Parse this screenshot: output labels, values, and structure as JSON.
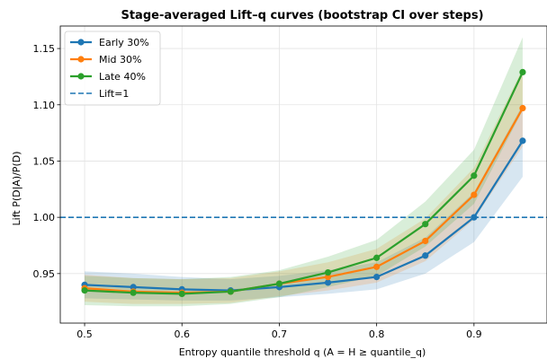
{
  "chart_data": {
    "type": "line",
    "title": "Stage-averaged Lift–q curves (bootstrap CI over steps)",
    "xlabel": "Entropy quantile threshold q  (A = H ≥ quantile_q)",
    "ylabel": "Lift  P(D|A)/P(D)",
    "xlim": [
      0.475,
      0.975
    ],
    "ylim": [
      0.906,
      1.17
    ],
    "xticks": [
      0.5,
      0.6,
      0.7,
      0.8,
      0.9
    ],
    "xtick_labels": [
      "0.5",
      "0.6",
      "0.7",
      "0.8",
      "0.9"
    ],
    "yticks": [
      0.95,
      1.0,
      1.05,
      1.1,
      1.15
    ],
    "ytick_labels": [
      "0.95",
      "1.00",
      "1.05",
      "1.10",
      "1.15"
    ],
    "grid": true,
    "legend_position": "top-left",
    "x": [
      0.5,
      0.55,
      0.6,
      0.65,
      0.7,
      0.75,
      0.8,
      0.85,
      0.9,
      0.95
    ],
    "series": [
      {
        "name": "Early 30%",
        "color": "#1f77b4",
        "values": [
          0.94,
          0.938,
          0.936,
          0.935,
          0.938,
          0.942,
          0.947,
          0.966,
          1.0,
          1.068
        ],
        "ci_lower": [
          0.928,
          0.927,
          0.926,
          0.926,
          0.929,
          0.932,
          0.936,
          0.95,
          0.978,
          1.036
        ],
        "ci_upper": [
          0.952,
          0.95,
          0.947,
          0.945,
          0.948,
          0.953,
          0.96,
          0.982,
          1.022,
          1.1
        ]
      },
      {
        "name": "Mid 30%",
        "color": "#ff7f0e",
        "values": [
          0.937,
          0.934,
          0.933,
          0.934,
          0.941,
          0.947,
          0.956,
          0.979,
          1.02,
          1.097
        ],
        "ci_lower": [
          0.925,
          0.923,
          0.923,
          0.924,
          0.93,
          0.935,
          0.942,
          0.961,
          0.998,
          1.063
        ],
        "ci_upper": [
          0.949,
          0.946,
          0.945,
          0.946,
          0.952,
          0.96,
          0.972,
          0.999,
          1.044,
          1.132
        ]
      },
      {
        "name": "Late 40%",
        "color": "#2ca02c",
        "values": [
          0.935,
          0.933,
          0.932,
          0.934,
          0.941,
          0.951,
          0.964,
          0.994,
          1.037,
          1.129
        ],
        "ci_lower": [
          0.922,
          0.921,
          0.921,
          0.923,
          0.929,
          0.938,
          0.948,
          0.974,
          1.012,
          1.095
        ],
        "ci_upper": [
          0.948,
          0.946,
          0.945,
          0.947,
          0.953,
          0.965,
          0.98,
          1.014,
          1.06,
          1.16
        ]
      }
    ],
    "reference_line": {
      "name": "Lift=1",
      "y": 1.0,
      "color": "#1f77b4",
      "style": "dashed"
    }
  }
}
